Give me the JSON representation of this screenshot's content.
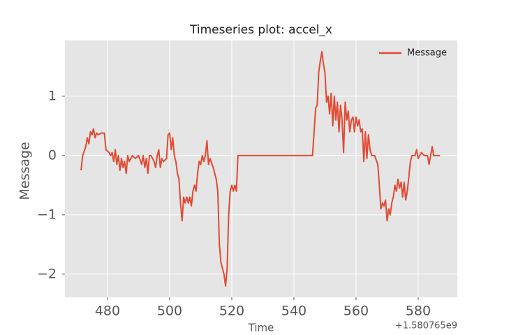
{
  "chart_data": {
    "type": "line",
    "title": "Timeseries plot: accel_x",
    "xlabel": "Time",
    "ylabel": "Message",
    "x_offset_label": "+1.580765e9",
    "xlim": [
      466.3,
      592.6
    ],
    "xticks": [
      480,
      500,
      520,
      540,
      560,
      580
    ],
    "ylim": [
      -2.39,
      1.94
    ],
    "yticks": [
      {
        "value": -2,
        "label": "−2"
      },
      {
        "value": -1,
        "label": "−1"
      },
      0,
      1
    ],
    "grid": true,
    "legend": "upper right",
    "x": [
      471.5,
      472,
      473,
      473.5,
      474,
      474.5,
      475,
      475.5,
      476,
      476.5,
      477,
      478,
      479,
      479.5,
      480.5,
      481,
      481.5,
      482,
      482.5,
      483,
      483.5,
      484,
      484.5,
      485,
      485.5,
      486,
      486.5,
      487,
      488,
      489,
      490,
      491,
      491.5,
      492,
      492.5,
      493,
      493.5,
      494,
      495,
      495.5,
      496,
      496.5,
      497,
      497.5,
      498,
      499,
      499.5,
      500,
      500.5,
      501,
      501.5,
      502,
      502.5,
      503,
      503.5,
      504,
      504.5,
      505,
      505.5,
      506,
      506.5,
      507,
      507.5,
      508,
      508.5,
      509,
      509.5,
      510,
      510.5,
      511,
      511.5,
      512,
      512.5,
      513,
      514,
      515,
      515.5,
      516,
      516.5,
      517,
      517.5,
      518,
      518.5,
      519,
      519.5,
      520,
      520.5,
      521,
      521.5,
      522,
      530,
      546,
      547,
      547.5,
      548,
      548.5,
      549,
      549.5,
      550,
      550.5,
      551,
      551.5,
      552,
      552.5,
      553,
      553.5,
      554,
      554.5,
      555,
      555.5,
      556,
      556.5,
      557,
      557.5,
      558,
      558.5,
      559,
      559.5,
      560,
      560.5,
      561,
      561.5,
      562,
      562.5,
      563,
      563.5,
      564,
      564.5,
      565,
      566,
      567,
      567.5,
      568,
      568.5,
      569,
      569.5,
      570,
      570.5,
      571,
      571.5,
      572,
      572.5,
      573,
      573.5,
      574,
      574.5,
      575,
      575.5,
      576,
      576.5,
      577,
      577.5,
      578,
      579,
      579.5,
      580,
      580.5,
      581,
      582,
      583,
      583.5,
      584,
      584.5,
      585,
      586,
      587
    ],
    "series": [
      {
        "name": "Message",
        "color": "#E24A33",
        "values": [
          -0.25,
          0.0,
          0.15,
          0.3,
          0.2,
          0.4,
          0.35,
          0.45,
          0.3,
          0.38,
          0.35,
          0.38,
          0.38,
          0.1,
          0.05,
          0.0,
          0.05,
          -0.1,
          0.1,
          -0.15,
          0.0,
          -0.25,
          -0.05,
          -0.2,
          -0.1,
          -0.3,
          0.0,
          -0.1,
          0.0,
          -0.05,
          0.0,
          -0.15,
          0.0,
          -0.2,
          -0.05,
          -0.3,
          0.0,
          0.0,
          -0.1,
          -0.2,
          0.0,
          0.1,
          -0.2,
          -0.05,
          -0.1,
          -0.05,
          0.35,
          0.38,
          0.1,
          0.3,
          0.0,
          -0.1,
          -0.3,
          -0.4,
          -0.8,
          -1.1,
          -0.7,
          -0.8,
          -0.7,
          -0.8,
          -0.7,
          -0.85,
          -0.6,
          -0.5,
          -0.6,
          -0.3,
          -0.1,
          -0.15,
          0.0,
          -0.1,
          0.0,
          0.25,
          -0.15,
          -0.05,
          -0.2,
          -0.4,
          -0.6,
          -1.5,
          -1.8,
          -1.9,
          -2.0,
          -2.2,
          -1.9,
          -1.0,
          -0.6,
          -0.5,
          -0.6,
          -0.5,
          -0.6,
          0.0,
          0.0,
          0.0,
          0.8,
          0.85,
          1.4,
          1.6,
          1.75,
          1.55,
          1.4,
          0.9,
          1.0,
          0.7,
          1.05,
          0.5,
          1.0,
          0.6,
          0.9,
          0.4,
          0.85,
          0.6,
          0.05,
          0.9,
          0.6,
          0.75,
          0.4,
          0.6,
          0.65,
          0.4,
          0.65,
          0.5,
          0.6,
          0.4,
          0.45,
          -0.1,
          0.4,
          -0.05,
          0.35,
          0.1,
          0.0,
          0.0,
          -0.15,
          -0.5,
          -0.9,
          -0.8,
          -0.85,
          -0.75,
          -1.1,
          -0.9,
          -1.0,
          -0.8,
          -0.7,
          -0.5,
          -0.6,
          -0.4,
          -0.55,
          -0.45,
          -0.7,
          -0.45,
          -0.75,
          -0.6,
          -0.35,
          -0.1,
          0.0,
          0.0,
          0.1,
          -0.05,
          0.0,
          0.05,
          0.0,
          0.0,
          -0.15,
          0.0,
          0.15,
          0.0,
          0.0,
          0.0
        ]
      }
    ]
  }
}
